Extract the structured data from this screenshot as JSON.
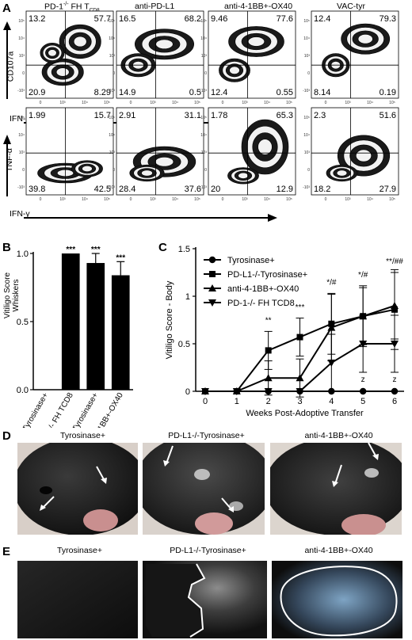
{
  "panels": {
    "A": {
      "letter": "A",
      "column_titles": [
        "PD-1-/- FH T",
        "anti-PD-L1",
        "anti-4-1BB+-OX40",
        "VAC-tyr"
      ],
      "col1_title_main": "PD-1",
      "col1_title_sup": "-/-",
      "col1_title_rest": " FH T",
      "col1_title_sub": "CD8",
      "row1_ylabel": "CD107a",
      "row2_ylabel": "TNF-α",
      "xlabel": "IFN-γ",
      "row1_quadrants": [
        {
          "ul": "13.2",
          "ur": "57.7",
          "ll": "20.9",
          "lr": "8.29"
        },
        {
          "ul": "16.5",
          "ur": "68.2",
          "ll": "14.9",
          "lr": "0.5"
        },
        {
          "ul": "9.46",
          "ur": "77.6",
          "ll": "12.4",
          "lr": "0.55"
        },
        {
          "ul": "12.4",
          "ur": "79.3",
          "ll": "8.14",
          "lr": "0.19"
        }
      ],
      "row2_quadrants": [
        {
          "ul": "1.99",
          "ur": "15.7",
          "ll": "39.8",
          "lr": "42.5"
        },
        {
          "ul": "2.91",
          "ur": "31.1",
          "ll": "28.4",
          "lr": "37.6"
        },
        {
          "ul": "1.78",
          "ur": "65.3",
          "ll": "20",
          "lr": "12.9"
        },
        {
          "ul": "2.3",
          "ur": "51.6",
          "ll": "18.2",
          "lr": "27.9"
        }
      ],
      "y_ticks": [
        "10⁵",
        "10⁴",
        "10³",
        "0",
        "-10³"
      ],
      "x_ticks": [
        "0",
        "10³",
        "10⁴",
        "10⁵"
      ]
    },
    "B": {
      "letter": "B",
      "ylabel_line1": "Vitiligo Score",
      "ylabel_line2": "Whiskers",
      "y_ticks": [
        "0.0",
        "0.5",
        "1.0"
      ],
      "categories": [
        "Tyrosinase+",
        "PD-1-/- FH TCD8",
        "PD-L1-/-Tyrosinase+",
        "anti-4-1BB+-OX40"
      ],
      "significance": [
        "",
        "***",
        "***",
        "***"
      ]
    },
    "C": {
      "letter": "C",
      "ylabel": "Vitiligo Score - Body",
      "xlabel": "Weeks Post-Adoptive Transfer",
      "y_ticks": [
        "0",
        "0.5",
        "1",
        "1.5"
      ],
      "x_ticks": [
        "0",
        "1",
        "2",
        "3",
        "4",
        "5",
        "6"
      ],
      "legend": [
        "Tyrosinase+",
        "PD-L1-/-Tyrosinase+",
        "anti-4-1BB+-OX40",
        "PD-1-/- FH TCD8"
      ],
      "sig_labels": [
        "**",
        "***",
        "*/#",
        "*/#",
        "**/##"
      ],
      "z_label": "z"
    },
    "D": {
      "letter": "D",
      "labels": [
        "Tyrosinase+",
        "PD-L1-/-Tyrosinase+",
        "anti-4-1BB+-OX40"
      ]
    },
    "E": {
      "letter": "E",
      "labels": [
        "Tyrosinase+",
        "PD-L1-/-Tyrosinase+",
        "anti-4-1BB+-OX40"
      ]
    }
  },
  "chart_data": [
    {
      "type": "bar",
      "categories": [
        "Tyrosinase+",
        "PD-1-/- FH TCD8",
        "PD-L1-/-Tyrosinase+",
        "anti-4-1BB+-OX40"
      ],
      "values": [
        0,
        1.0,
        0.93,
        0.84
      ],
      "errors": [
        0,
        0,
        0.07,
        0.1
      ],
      "xlabel": "",
      "ylabel": "Vitiligo Score Whiskers",
      "ylim": [
        0,
        1.0
      ]
    },
    {
      "type": "line",
      "x": [
        0,
        1,
        2,
        3,
        4,
        5,
        6
      ],
      "xlabel": "Weeks Post-Adoptive Transfer",
      "ylabel": "Vitiligo Score - Body",
      "ylim": [
        0,
        1.5
      ],
      "series": [
        {
          "name": "Tyrosinase+",
          "values": [
            0,
            0,
            0,
            0,
            0,
            0,
            0
          ],
          "marker": "circle"
        },
        {
          "name": "PD-L1-/-Tyrosinase+",
          "values": [
            0,
            0,
            0.43,
            0.57,
            0.71,
            0.79,
            0.86
          ],
          "errors": [
            0,
            0,
            0.2,
            0.2,
            0.32,
            0.32,
            0.42
          ],
          "marker": "square"
        },
        {
          "name": "anti-4-1BB+-OX40",
          "values": [
            0,
            0,
            0.14,
            0.14,
            0.67,
            0.79,
            0.9
          ],
          "errors": [
            0,
            0,
            0.18,
            0.2,
            0.35,
            0.3,
            0.35
          ],
          "marker": "triangle-up"
        },
        {
          "name": "PD-1-/- FH TCD8",
          "values": [
            0,
            0,
            0,
            0,
            0.3,
            0.5,
            0.5
          ],
          "errors": [
            0,
            0,
            0,
            0,
            0.3,
            0.3,
            0.3
          ],
          "marker": "triangle-down"
        }
      ]
    }
  ],
  "colors": {
    "ink": "#000000",
    "fur": "#1a1a1a",
    "patch": "#c9c9c9"
  }
}
